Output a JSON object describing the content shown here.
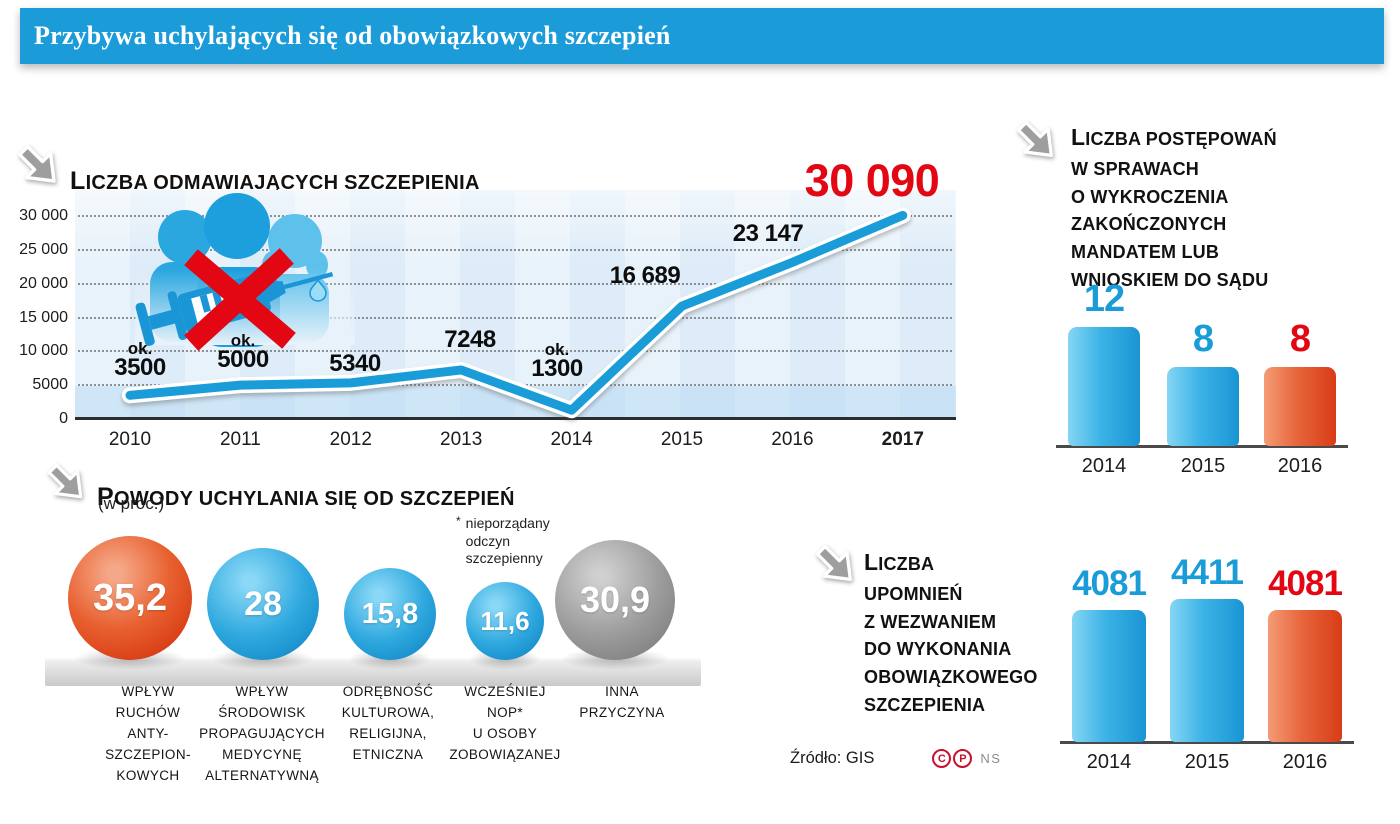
{
  "header": {
    "title": "Przybywa uchylających się od obowiązkowych szczepień"
  },
  "refusals_chart": {
    "title": "LICZBA ODMAWIAJĄCYCH SZCZEPIENIA",
    "y_ticks": [
      "30 000",
      "25 000",
      "20 000",
      "15 000",
      "10 000",
      "5000",
      "0"
    ],
    "y_tick_values": [
      30000,
      25000,
      20000,
      15000,
      10000,
      5000,
      0
    ],
    "points": [
      {
        "year": "2010",
        "value": 3500,
        "prefix": "ok.",
        "display": "3500",
        "highlight": false
      },
      {
        "year": "2011",
        "value": 5000,
        "prefix": "ok.",
        "display": "5000",
        "highlight": false
      },
      {
        "year": "2012",
        "value": 5340,
        "prefix": "",
        "display": "5340",
        "highlight": false
      },
      {
        "year": "2013",
        "value": 7248,
        "prefix": "",
        "display": "7248",
        "highlight": false
      },
      {
        "year": "2014",
        "value": 1300,
        "prefix": "ok.",
        "display": "1300",
        "highlight": false
      },
      {
        "year": "2015",
        "value": 16689,
        "prefix": "",
        "display": "16 689",
        "highlight": false
      },
      {
        "year": "2016",
        "value": 23147,
        "prefix": "",
        "display": "23 147",
        "highlight": false
      },
      {
        "year": "2017",
        "value": 30090,
        "prefix": "",
        "display": "30 090",
        "highlight": true
      }
    ]
  },
  "reasons": {
    "title": "POWODY UCHYLANIA SIĘ OD SZCZEPIEŃ",
    "subtitle": "(w proc.)",
    "footnote_marker": "*",
    "footnote_text": "nieporządany\nodczyn\nszczepienny",
    "items": [
      {
        "display": "35,2",
        "value": 35.2,
        "color": "red",
        "label": "WPŁYW\nRUCHÓW\nANTY-\nSZCZEPION-\nKOWYCH"
      },
      {
        "display": "28",
        "value": 28,
        "color": "blue",
        "label": "WPŁYW\nŚRODOWISK\nPROPAGUJĄCYCH\nMEDYCYNĘ\nALTERNATYWNĄ"
      },
      {
        "display": "15,8",
        "value": 15.8,
        "color": "blue",
        "label": "ODRĘBNOŚĆ\nKULTUROWA,\nRELIGIJNA,\nETNICZNA"
      },
      {
        "display": "11,6",
        "value": 11.6,
        "color": "blue",
        "label": "WCZEŚNIEJ\nNOP*\nU OSOBY\nZOBOWIĄZANEJ"
      },
      {
        "display": "30,9",
        "value": 30.9,
        "color": "gray",
        "label": "INNA\nPRZYCZYNA"
      }
    ]
  },
  "proceedings_chart": {
    "title": "LICZBA POSTĘPOWAŃ\nW SPRAWACH\nO WYKROCZENIA\nZAKOŃCZONYCH\nMANDATEM LUB\nWNIOSKIEM DO SĄDU",
    "bars": [
      {
        "year": "2014",
        "value": 12,
        "display": "12",
        "color": "blue"
      },
      {
        "year": "2015",
        "value": 8,
        "display": "8",
        "color": "blue"
      },
      {
        "year": "2016",
        "value": 8,
        "display": "8",
        "color": "red"
      }
    ]
  },
  "reminders_chart": {
    "title": "LICZBA\nUPOMNIEŃ\nZ WEZWANIEM\nDO WYKONANIA\nOBOWIĄZKOWEGO\nSZCZEPIENIA",
    "bars": [
      {
        "year": "2014",
        "value": 4081,
        "display": "4081",
        "color": "blue"
      },
      {
        "year": "2015",
        "value": 4411,
        "display": "4411",
        "color": "blue"
      },
      {
        "year": "2016",
        "value": 4081,
        "display": "4081",
        "color": "red"
      }
    ]
  },
  "source": {
    "label": "Źródło: GIS",
    "logo_letters": [
      "C",
      "P"
    ],
    "logo_suffix": "NS"
  },
  "colors": {
    "accent_blue": "#1a9cd8",
    "accent_red": "#e30613",
    "bar_red_dark": "#d83c16",
    "header_bg": "#1b9cd9",
    "arrow_gray": "#9e9e9e"
  },
  "chart_data": [
    {
      "type": "line",
      "title": "LICZBA ODMAWIAJĄCYCH SZCZEPIENIA",
      "x": [
        "2010",
        "2011",
        "2012",
        "2013",
        "2014",
        "2015",
        "2016",
        "2017"
      ],
      "y": [
        3500,
        5000,
        5340,
        7248,
        1300,
        16689,
        23147,
        30090
      ],
      "point_labels": [
        "ok. 3500",
        "ok. 5000",
        "5340",
        "7248",
        "ok. 1300",
        "16 689",
        "23 147",
        "30 090"
      ],
      "ylim": [
        0,
        30000
      ],
      "y_tick_step": 5000,
      "grid": "horizontal-dotted",
      "line_color": "#1a9cd8",
      "highlight": {
        "x": "2017",
        "value": 30090,
        "color": "#e30613"
      }
    },
    {
      "type": "bar",
      "title": "LICZBA POSTĘPOWAŃ W SPRAWACH O WYKROCZENIA ZAKOŃCZONYCH MANDATEM LUB WNIOSKIEM DO SĄDU",
      "categories": [
        "2014",
        "2015",
        "2016"
      ],
      "values": [
        12,
        8,
        8
      ],
      "bar_colors": [
        "#1a9cd8",
        "#1a9cd8",
        "#d83c16"
      ],
      "data_labels": [
        "12",
        "8",
        "8"
      ]
    },
    {
      "type": "bar",
      "title": "LICZBA UPOMNIEŃ Z WEZWANIEM DO WYKONANIA OBOWIĄZKOWEGO SZCZEPIENIA",
      "categories": [
        "2014",
        "2015",
        "2016"
      ],
      "values": [
        4081,
        4411,
        4081
      ],
      "bar_colors": [
        "#1a9cd8",
        "#1a9cd8",
        "#d83c16"
      ],
      "data_labels": [
        "4081",
        "4411",
        "4081"
      ]
    },
    {
      "type": "bubble",
      "title": "POWODY UCHYLANIA SIĘ OD SZCZEPIEŃ (w proc.)",
      "categories": [
        "WPŁYW RUCHÓW ANTY-SZCZEPIONKOWYCH",
        "WPŁYW ŚRODOWISK PROPAGUJĄCYCH MEDYCYNĘ ALTERNATYWNĄ",
        "ODRĘBNOŚĆ KULTUROWA, RELIGIJNA, ETNICZNA",
        "WCZEŚNIEJ NOP* U OSOBY ZOBOWIĄZANEJ",
        "INNA PRZYCZYNA"
      ],
      "values": [
        35.2,
        28,
        15.8,
        11.6,
        30.9
      ],
      "unit": "percent",
      "footnote": "* nieporządany odczyn szczepienny"
    }
  ]
}
